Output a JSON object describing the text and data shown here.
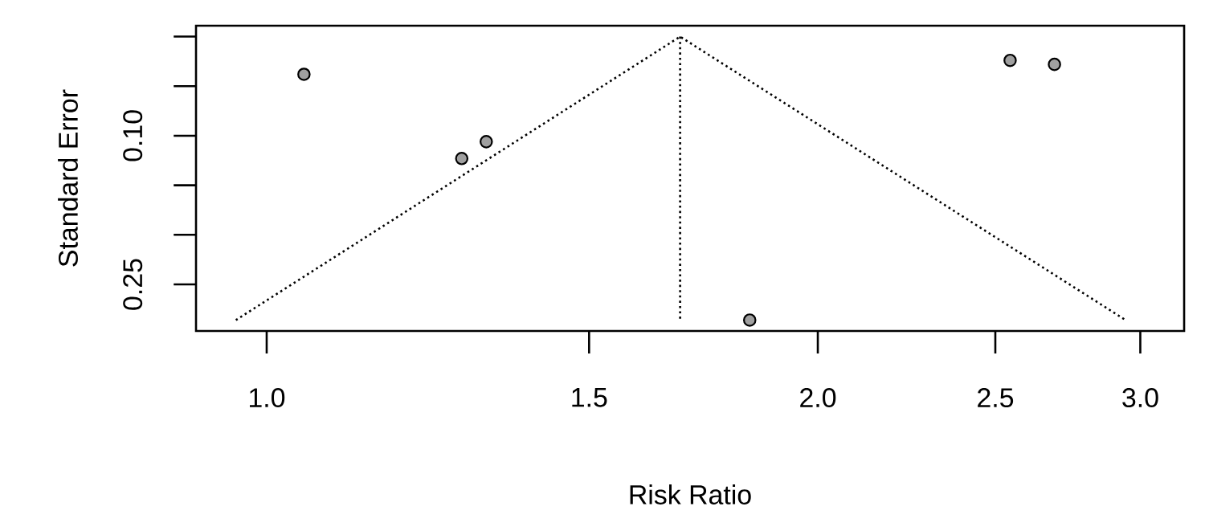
{
  "chart_data": {
    "type": "scatter",
    "xlabel": "Risk Ratio",
    "ylabel": "Standard Error",
    "log": "x",
    "marker": "circle",
    "xlim": [
      0.915,
      3.17
    ],
    "ylim": [
      0.297,
      -0.011
    ],
    "xticks": [
      {
        "value": 1,
        "label": "1.0"
      },
      {
        "value": 1.5,
        "label": "1.5"
      },
      {
        "value": 2,
        "label": "2.0"
      },
      {
        "value": 2.5,
        "label": "2.5"
      },
      {
        "value": 3,
        "label": "3.0"
      }
    ],
    "yticks": [
      {
        "value": 0,
        "label": null
      },
      {
        "value": 0.05,
        "label": null
      },
      {
        "value": 0.1,
        "label": "0.10"
      },
      {
        "value": 0.15,
        "label": null
      },
      {
        "value": 0.2,
        "label": null
      },
      {
        "value": 0.25,
        "label": "0.25"
      }
    ],
    "series": [
      {
        "type": "line",
        "color": "#000000",
        "line_style": "dotted",
        "marker": "none",
        "x": [
          0.962,
          1.682,
          2.945
        ],
        "values": [
          0.286,
          0,
          0.286
        ]
      },
      {
        "type": "line",
        "color": "#000000",
        "line_style": "dotted",
        "marker": "none",
        "x": [
          1.682,
          1.682
        ],
        "values": [
          0,
          0.286
        ]
      },
      {
        "type": "scatter",
        "color": "#a0a0a0",
        "x": [
          1.048,
          1.278,
          1.318,
          2.547,
          2.693,
          1.836
        ],
        "values": [
          0.038,
          0.123,
          0.106,
          0.024,
          0.028,
          0.286
        ]
      }
    ]
  }
}
